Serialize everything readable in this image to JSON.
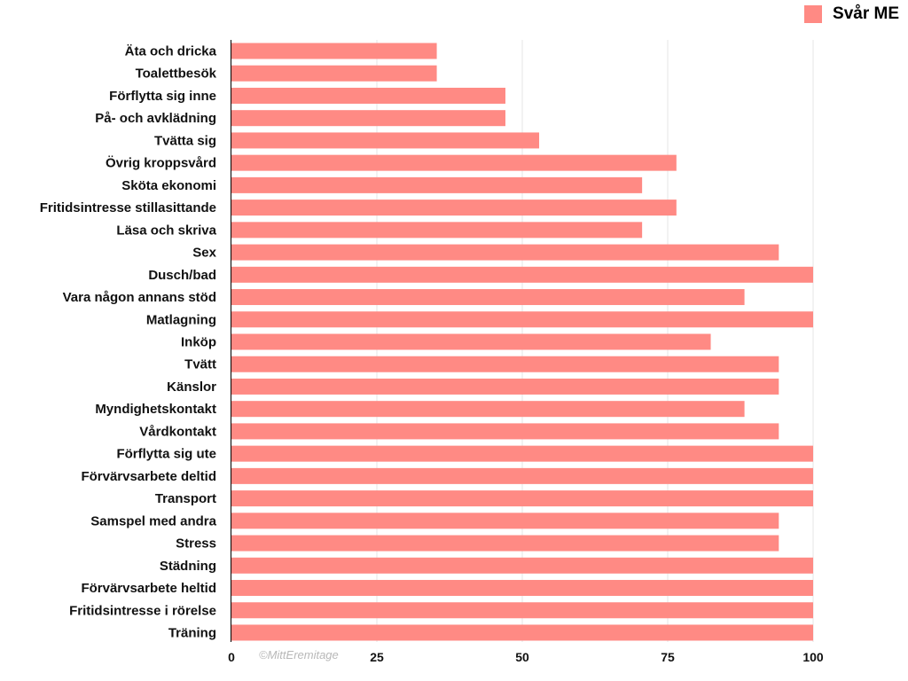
{
  "colors": {
    "bar": "#ff8a84",
    "grid": "#e6e6e6",
    "axis": "#000000"
  },
  "legend": {
    "label": "Svår ME"
  },
  "watermark": "©MittEremitage",
  "chart_data": {
    "type": "bar",
    "orientation": "horizontal",
    "title": "",
    "xlabel": "",
    "ylabel": "",
    "xlim": [
      0,
      100
    ],
    "xticks": [
      0,
      25,
      50,
      75,
      100
    ],
    "grid": true,
    "legend_position": "top-right",
    "categories": [
      "Äta och dricka",
      "Toalettbesök",
      "Förflytta sig inne",
      "På- och avklädning",
      "Tvätta sig",
      "Övrig kroppsvård",
      "Sköta ekonomi",
      "Fritidsintresse stillasittande",
      "Läsa och skriva",
      "Sex",
      "Dusch/bad",
      "Vara någon annans stöd",
      "Matlagning",
      "Inköp",
      "Tvätt",
      "Känslor ",
      "Myndighetskontakt",
      "Vårdkontakt",
      "Förflytta sig ute",
      "Förvärvsarbete deltid",
      "Transport",
      "Samspel med andra",
      "Stress",
      "Städning",
      "Förvärvsarbete heltid",
      "Fritidsintresse i rörelse",
      "Träning"
    ],
    "series": [
      {
        "name": "Svår ME",
        "values": [
          35.3,
          35.3,
          47.1,
          47.1,
          52.9,
          76.5,
          70.6,
          76.5,
          70.6,
          94.1,
          100,
          88.2,
          100,
          82.4,
          94.1,
          94.1,
          88.2,
          94.1,
          100,
          100,
          100,
          94.1,
          94.1,
          100,
          100,
          100,
          100
        ]
      }
    ]
  }
}
